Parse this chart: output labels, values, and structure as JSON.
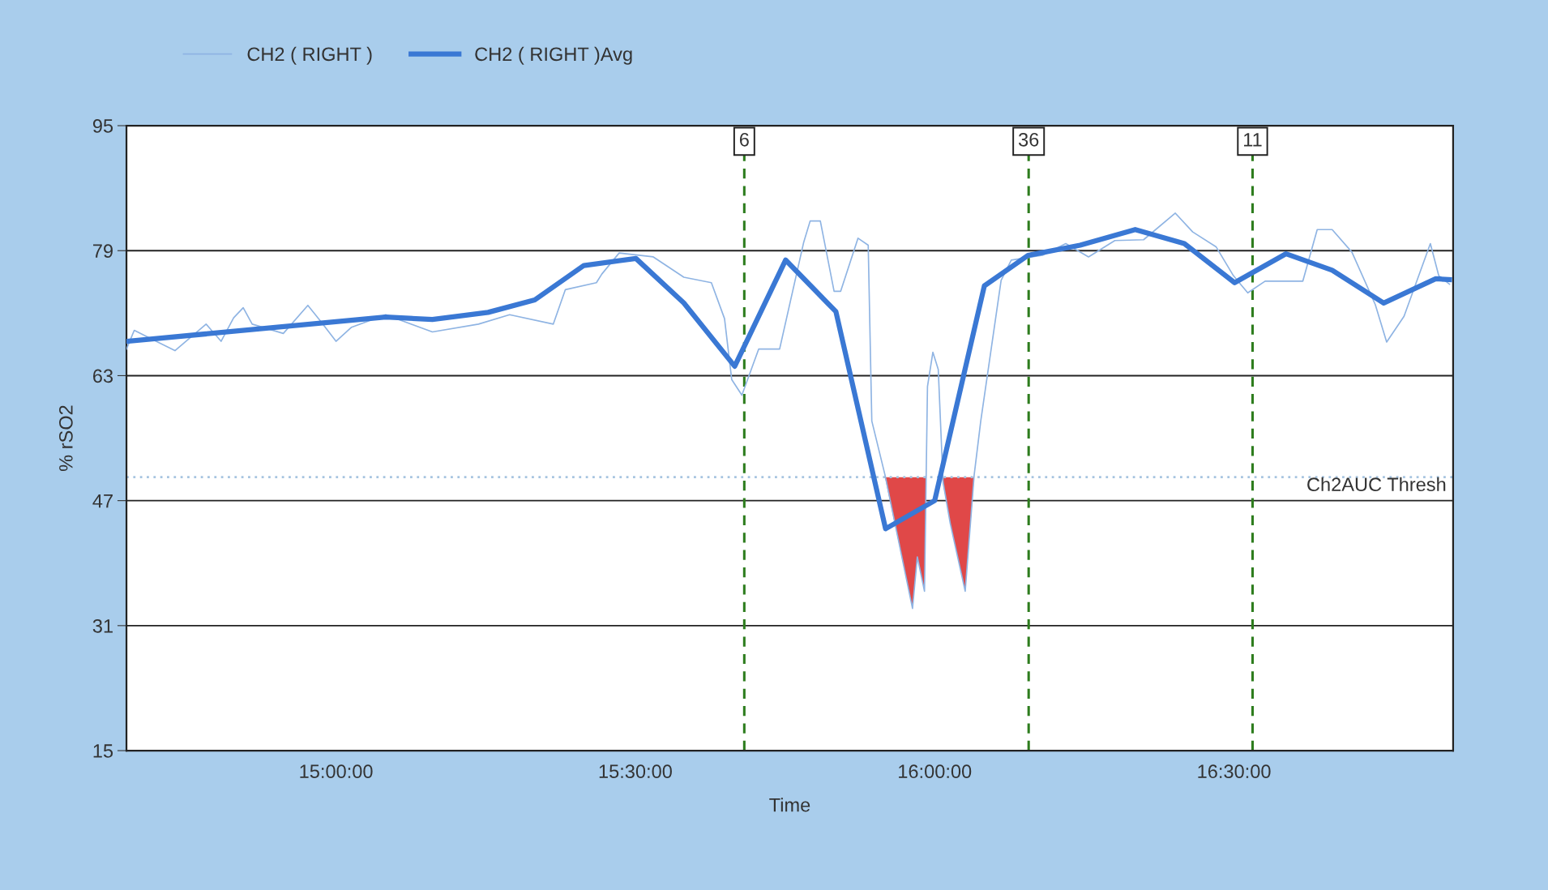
{
  "chart_data": {
    "type": "line",
    "xlabel": "Time",
    "ylabel": "% rSO2",
    "xlim": [
      14.65,
      16.866
    ],
    "xticks": [
      {
        "value": 15,
        "label": "15:00:00"
      },
      {
        "value": 15.5,
        "label": "15:30:00"
      },
      {
        "value": 16,
        "label": "16:00:00"
      },
      {
        "value": 16.5,
        "label": "16:30:00"
      }
    ],
    "ylim": [
      15,
      95
    ],
    "yticks": [
      15,
      31,
      47,
      63,
      79,
      95
    ],
    "grid": "y",
    "legend": "top left",
    "series": [
      {
        "name": "CH2 ( RIGHT )",
        "color": "#8fb4e3",
        "x": [
          14.65,
          14.663,
          14.694,
          14.731,
          14.783,
          14.808,
          14.829,
          14.845,
          14.86,
          14.912,
          14.953,
          14.974,
          15.0,
          15.026,
          15.083,
          15.161,
          15.238,
          15.29,
          15.363,
          15.383,
          15.435,
          15.444,
          15.473,
          15.53,
          15.581,
          15.627,
          15.649,
          15.661,
          15.678,
          15.706,
          15.741,
          15.781,
          15.792,
          15.809,
          15.832,
          15.843,
          15.872,
          15.889,
          15.895,
          15.917,
          15.963,
          15.971,
          15.983,
          15.988,
          15.997,
          16.006,
          16.014,
          16.026,
          16.051,
          16.066,
          16.077,
          16.111,
          16.128,
          16.18,
          16.219,
          16.257,
          16.301,
          16.349,
          16.402,
          16.431,
          16.47,
          16.499,
          16.523,
          16.552,
          16.615,
          16.639,
          16.664,
          16.697,
          16.736,
          16.755,
          16.784,
          16.828,
          16.842,
          16.86
        ],
        "values": [
          66.4,
          68.8,
          67.6,
          66.2,
          69.6,
          67.4,
          70.4,
          71.7,
          69.6,
          68.4,
          72.0,
          70.0,
          67.4,
          69.2,
          70.8,
          68.6,
          69.6,
          70.8,
          69.6,
          74.0,
          74.9,
          76.0,
          78.7,
          78.2,
          75.6,
          74.9,
          70.3,
          62.5,
          60.5,
          66.4,
          66.4,
          80.0,
          82.8,
          82.8,
          73.8,
          73.8,
          80.6,
          79.7,
          57.2,
          50.3,
          33.2,
          39.8,
          35.4,
          61.6,
          66.0,
          63.8,
          49.4,
          44.1,
          35.4,
          50.3,
          57.2,
          75.2,
          77.8,
          78.4,
          79.9,
          78.2,
          80.3,
          80.4,
          83.8,
          81.4,
          79.5,
          75.8,
          73.6,
          75.1,
          75.1,
          81.7,
          81.7,
          78.8,
          72.1,
          67.3,
          70.6,
          79.9,
          75.8,
          74.7
        ]
      },
      {
        "name": "CH2 ( RIGHT )Avg",
        "color": "#3a78d4",
        "x": [
          14.651,
          15.083,
          15.161,
          15.254,
          15.332,
          15.414,
          15.501,
          15.581,
          15.666,
          15.751,
          15.835,
          15.918,
          16.0,
          16.083,
          16.156,
          16.243,
          16.335,
          16.417,
          16.501,
          16.587,
          16.664,
          16.75,
          16.837,
          16.86
        ],
        "values": [
          67.4,
          70.5,
          70.2,
          71.1,
          72.7,
          77.1,
          78.0,
          72.3,
          64.2,
          77.8,
          71.2,
          43.4,
          47.0,
          74.5,
          78.4,
          79.7,
          81.7,
          79.9,
          74.9,
          78.6,
          76.5,
          72.3,
          75.4,
          75.3
        ]
      },
      {
        "type": "area",
        "color": "#e04848",
        "x": [
          15.917,
          15.963,
          15.971,
          15.983,
          15.986,
          15.998,
          16.012,
          16.026,
          16.051,
          16.066
        ],
        "values": [
          50,
          33.2,
          39.8,
          35.4,
          50,
          null,
          50,
          44.1,
          35.4,
          50
        ]
      }
    ],
    "ref_lines": [
      {
        "axis": "y",
        "value": 50,
        "label": "Ch2AUC Thresh",
        "color": "#a6c4e0",
        "line_style": "dotted"
      },
      {
        "axis": "x",
        "value": 15.682,
        "color": "#2e7d1e",
        "line_style": "dashed"
      },
      {
        "axis": "x",
        "value": 16.157,
        "color": "#2e7d1e",
        "line_style": "dashed"
      },
      {
        "axis": "x",
        "value": 16.531,
        "color": "#2e7d1e",
        "line_style": "dashed"
      }
    ],
    "annotations": [
      {
        "text": "6",
        "x": 15.682,
        "y": 93
      },
      {
        "text": "36",
        "x": 16.157,
        "y": 93
      },
      {
        "text": "11",
        "x": 16.531,
        "y": 93
      }
    ]
  }
}
